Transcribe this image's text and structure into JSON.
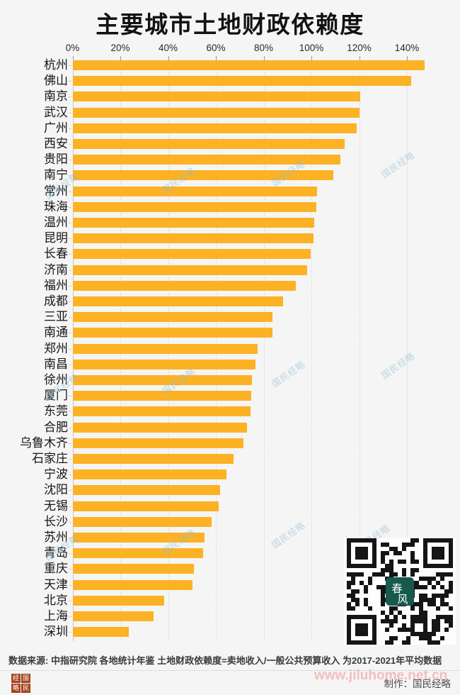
{
  "title": "主要城市土地财政依赖度",
  "colors": {
    "background": "#F4F5F4",
    "bar": "#FCB224",
    "title_text": "#121212",
    "axis_text": "#2a2a2a",
    "watermark_blue": "#8CBAD6",
    "watermark_pink": "#F28F8F",
    "seal_red": "#A5431F",
    "qr_logo_teal": "#175A4C"
  },
  "chart_data": {
    "type": "bar",
    "orientation": "horizontal",
    "title": "主要城市土地财政依赖度",
    "xlabel": "",
    "ylabel": "",
    "unit": "%",
    "axis_position": "top",
    "grid": "dotted-vertical",
    "xlim": [
      0,
      148
    ],
    "x_tick_values": [
      0,
      20,
      40,
      60,
      80,
      100,
      120,
      140
    ],
    "x_tick_labels": [
      "0%",
      "20%",
      "40%",
      "60%",
      "80%",
      "100%",
      "120%",
      "140%"
    ],
    "categories": [
      "杭州",
      "佛山",
      "南京",
      "武汉",
      "广州",
      "西安",
      "贵阳",
      "南宁",
      "常州",
      "珠海",
      "温州",
      "昆明",
      "长春",
      "济南",
      "福州",
      "成都",
      "三亚",
      "南通",
      "郑州",
      "南昌",
      "徐州",
      "厦门",
      "东莞",
      "合肥",
      "乌鲁木齐",
      "石家庄",
      "宁波",
      "沈阳",
      "无锡",
      "长沙",
      "苏州",
      "青岛",
      "重庆",
      "天津",
      "北京",
      "上海",
      "深圳"
    ],
    "values": [
      147.4,
      141.5,
      120.4,
      120.1,
      118.7,
      113.9,
      112.1,
      108.9,
      102.1,
      101.8,
      100.9,
      100.8,
      99.7,
      98.2,
      93.2,
      88.1,
      83.7,
      83.6,
      77.2,
      76.3,
      75.1,
      74.8,
      74.5,
      73.0,
      71.3,
      67.4,
      64.4,
      61.5,
      60.9,
      58.2,
      55.0,
      54.4,
      50.8,
      50.2,
      38.1,
      33.9,
      23.3
    ]
  },
  "watermarks": {
    "diagonal_text": "国民经略",
    "site_text": "www.jiluhome.net.cn"
  },
  "footer": {
    "source_note": "数据来源: 中指研究院 各地统计年鉴  土地财政依赖度=卖地收入/一般公共预算收入 为2017-2021年平均数据",
    "credit": "制作：国民经略",
    "logo_chars": [
      "经",
      "国",
      "略",
      "民"
    ],
    "qr_center_label": "春风"
  }
}
